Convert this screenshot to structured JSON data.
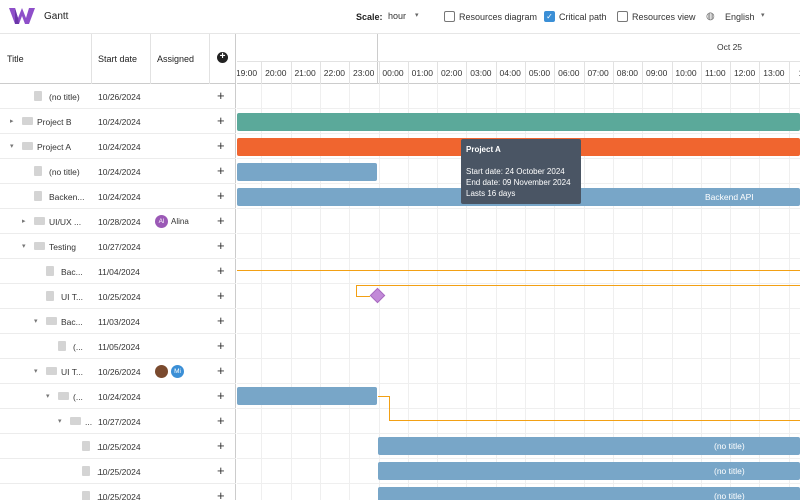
{
  "app": {
    "title": "Gantt"
  },
  "toolbar": {
    "scale_label": "Scale:",
    "scale_value": "hour",
    "resources_diagram": {
      "label": "Resources diagram",
      "checked": false
    },
    "critical_path": {
      "label": "Critical path",
      "checked": true
    },
    "resources_view": {
      "label": "Resources view",
      "checked": false
    },
    "language": "English"
  },
  "grid": {
    "columns": [
      "Title",
      "Start date",
      "Assigned"
    ],
    "rows": [
      {
        "title": "(no title)",
        "start": "10/26/2024",
        "type": "file",
        "level": 1,
        "expander": ""
      },
      {
        "title": "Project B",
        "start": "10/24/2024",
        "type": "folder",
        "level": 0,
        "expander": "right"
      },
      {
        "title": "Project A",
        "start": "10/24/2024",
        "type": "folder",
        "level": 0,
        "expander": "down"
      },
      {
        "title": "(no title)",
        "start": "10/24/2024",
        "type": "file",
        "level": 1,
        "expander": ""
      },
      {
        "title": "Backen...",
        "start": "10/24/2024",
        "type": "file",
        "level": 1,
        "expander": ""
      },
      {
        "title": "UI/UX ...",
        "start": "10/28/2024",
        "type": "folder",
        "level": 1,
        "expander": "right",
        "assignee": {
          "initials": "Al",
          "name": "Alina",
          "color": "#9b59b6"
        }
      },
      {
        "title": "Testing",
        "start": "10/27/2024",
        "type": "folder",
        "level": 1,
        "expander": "down"
      },
      {
        "title": "Bac...",
        "start": "11/04/2024",
        "type": "file",
        "level": 2,
        "expander": ""
      },
      {
        "title": "UI T...",
        "start": "10/25/2024",
        "type": "file",
        "level": 2,
        "expander": ""
      },
      {
        "title": "Bac...",
        "start": "11/03/2024",
        "type": "folder",
        "level": 2,
        "expander": "down"
      },
      {
        "title": "(...",
        "start": "11/05/2024",
        "type": "file",
        "level": 3,
        "expander": ""
      },
      {
        "title": "UI T...",
        "start": "10/26/2024",
        "type": "folder",
        "level": 2,
        "expander": "down",
        "avatars": [
          {
            "initials": "",
            "color": "#7a4a2e"
          },
          {
            "initials": "Mi",
            "color": "#3b8fd6"
          }
        ]
      },
      {
        "title": "(...",
        "start": "10/24/2024",
        "type": "folder",
        "level": 3,
        "expander": "down"
      },
      {
        "title": "...",
        "start": "10/27/2024",
        "type": "folder",
        "level": 4,
        "expander": "down"
      },
      {
        "title": "...",
        "start": "10/25/2024",
        "type": "file",
        "level": 5,
        "expander": ""
      },
      {
        "title": "...",
        "start": "10/25/2024",
        "type": "file",
        "level": 5,
        "expander": ""
      },
      {
        "title": "...",
        "start": "10/25/2024",
        "type": "file",
        "level": 5,
        "expander": ""
      }
    ]
  },
  "timeline": {
    "date_label": "Oct 25",
    "hours": [
      "19:00",
      "20:00",
      "21:00",
      "22:00",
      "23:00",
      "00:00",
      "01:00",
      "02:00",
      "03:00",
      "04:00",
      "05:00",
      "06:00",
      "07:00",
      "08:00",
      "09:00",
      "10:00",
      "11:00",
      "12:00",
      "13:00",
      "14"
    ],
    "bar_labels": {
      "backend": "Backend API",
      "no_title": "(no title)"
    },
    "colors": {
      "task": "#78a6c8",
      "project_b": "#5ba99a",
      "project_a": "#f0652f",
      "critical": "#f2a014",
      "milestone": "#c28ad8"
    }
  },
  "tooltip": {
    "title": "Project A",
    "start": "Start date: 24 October 2024",
    "end": "End date: 09 November 2024",
    "duration": "Lasts 16 days"
  }
}
